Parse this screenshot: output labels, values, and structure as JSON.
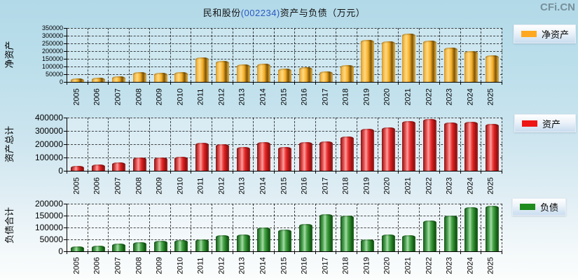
{
  "title": {
    "company": "民和股份",
    "code": "(002234)",
    "rest": "资产与负债（万元）"
  },
  "watermark": "CFi.CN",
  "colors": {
    "bar_orange": "#FFA81F",
    "bar_red": "#EE1515",
    "bar_green": "#1E8C1E",
    "title_code_blue": "#2B59C3",
    "watermark_gray": "#78909C",
    "background_top": "#B2D9E8",
    "background_bottom": "#FCFDFD"
  },
  "chart_data": [
    {
      "type": "bar",
      "name": "net-assets",
      "ylabel": "净资产",
      "legend_label": "净资产",
      "color_key": "orange",
      "ylim": [
        0,
        350000
      ],
      "ytick_step": 50000,
      "yticks": [
        "350000",
        "300000",
        "250000",
        "200000",
        "150000",
        "100000",
        "50000",
        "0"
      ],
      "grid": "on",
      "legend_position": "right",
      "categories": [
        "2005",
        "2006",
        "2007",
        "2008",
        "2009",
        "2010",
        "2011",
        "2012",
        "2013",
        "2014",
        "2015",
        "2016",
        "2017",
        "2018",
        "2019",
        "2020",
        "2021",
        "2022",
        "2023",
        "2024",
        "2025"
      ],
      "values": [
        22000,
        28000,
        38000,
        62000,
        57000,
        63000,
        160000,
        136000,
        113000,
        119000,
        85000,
        96000,
        70000,
        108000,
        272000,
        262000,
        313000,
        266000,
        223000,
        201000,
        173000
      ]
    },
    {
      "type": "bar",
      "name": "total-assets",
      "ylabel": "资产总计",
      "legend_label": "资产",
      "color_key": "red",
      "ylim": [
        0,
        400000
      ],
      "ytick_step": 100000,
      "yticks": [
        "400000",
        "300000",
        "200000",
        "100000",
        "0"
      ],
      "grid": "on",
      "legend_position": "right",
      "categories": [
        "2005",
        "2006",
        "2007",
        "2008",
        "2009",
        "2010",
        "2011",
        "2012",
        "2013",
        "2014",
        "2015",
        "2016",
        "2017",
        "2018",
        "2019",
        "2020",
        "2021",
        "2022",
        "2023",
        "2024",
        "2025"
      ],
      "values": [
        38000,
        48000,
        62000,
        100000,
        99000,
        104000,
        208000,
        200000,
        178000,
        214000,
        179000,
        216000,
        223000,
        257000,
        318000,
        325000,
        373000,
        388000,
        363000,
        371000,
        352000
      ]
    },
    {
      "type": "bar",
      "name": "total-liabilities",
      "ylabel": "负债合计",
      "legend_label": "负债",
      "color_key": "green",
      "ylim": [
        0,
        200000
      ],
      "ytick_step": 50000,
      "yticks": [
        "200000",
        "150000",
        "100000",
        "50000",
        "0"
      ],
      "grid": "on",
      "legend_position": "right",
      "categories": [
        "2005",
        "2006",
        "2007",
        "2008",
        "2009",
        "2010",
        "2011",
        "2012",
        "2013",
        "2014",
        "2015",
        "2016",
        "2017",
        "2018",
        "2019",
        "2020",
        "2021",
        "2022",
        "2023",
        "2024",
        "2025"
      ],
      "values": [
        21000,
        24000,
        32000,
        39000,
        45000,
        48000,
        50000,
        68000,
        70000,
        100000,
        91000,
        115000,
        155000,
        149000,
        50000,
        70000,
        69000,
        129000,
        149000,
        184000,
        191000
      ]
    }
  ]
}
